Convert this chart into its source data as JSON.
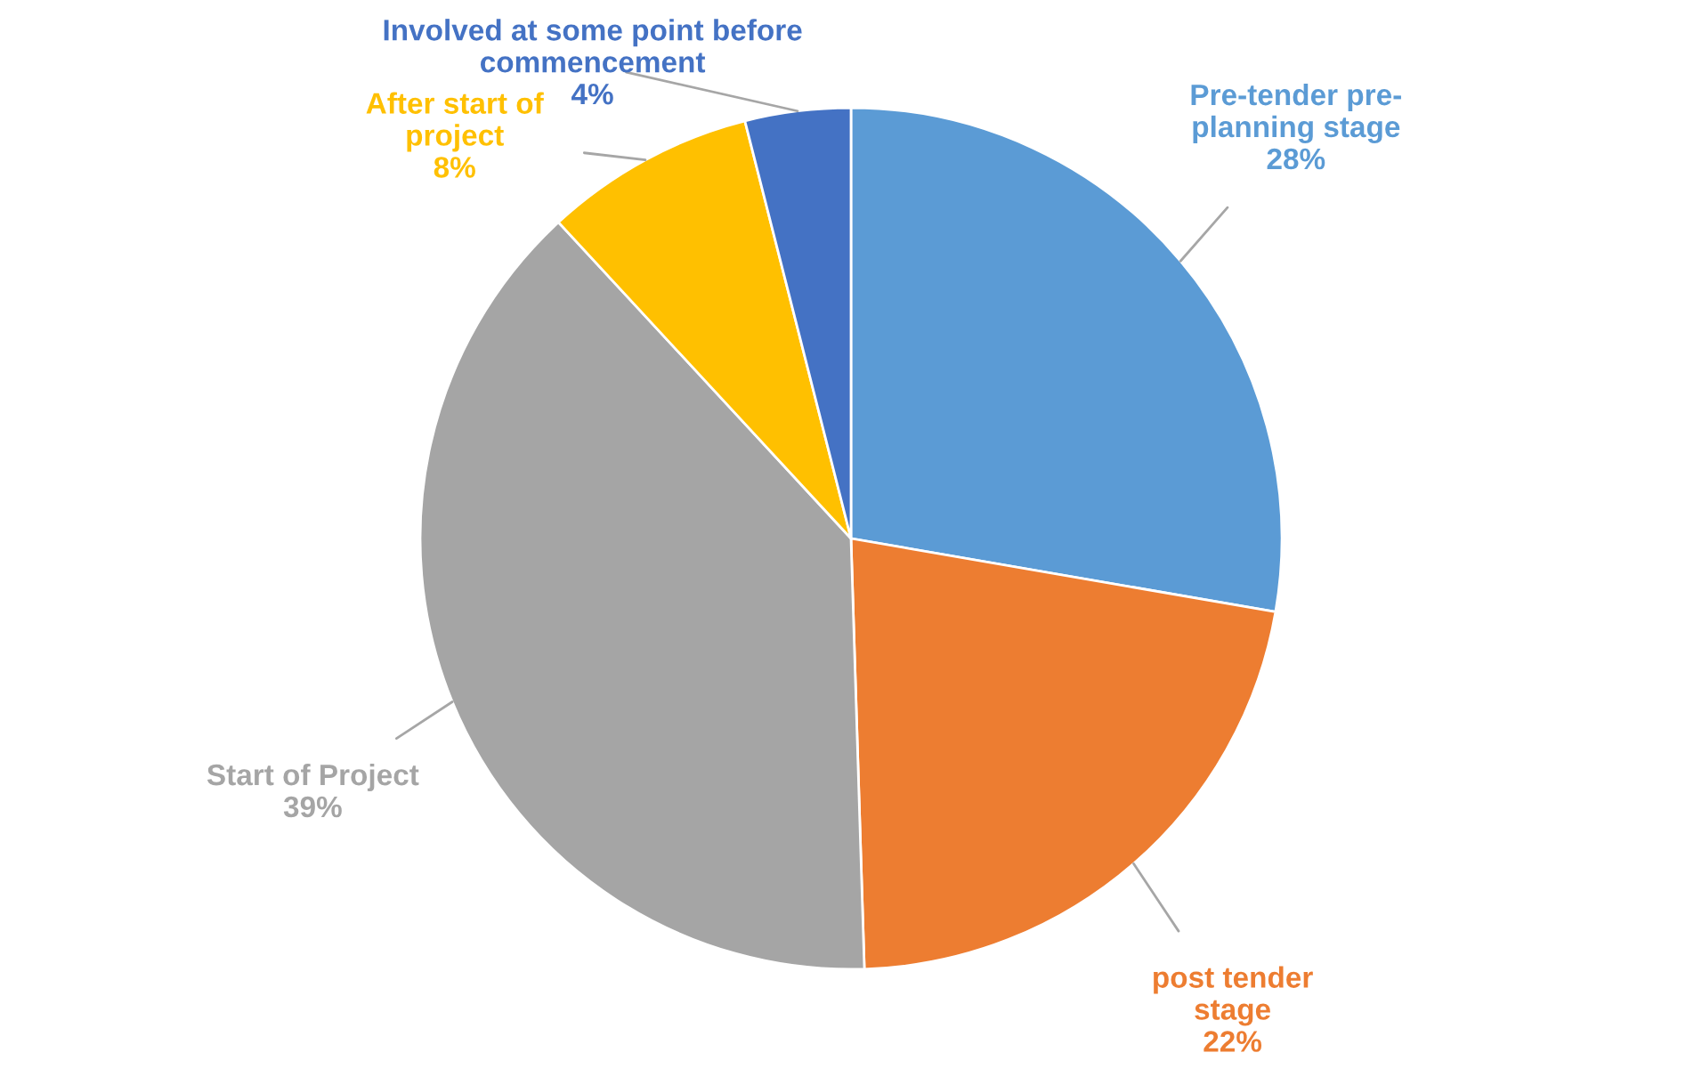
{
  "chart_data": {
    "type": "pie",
    "categories": [
      "Pre-tender pre-\nplanning stage",
      "post tender\nstage",
      "Start of Project",
      "After start of\nproject",
      "Involved at some point before\ncommencement"
    ],
    "values": [
      28,
      22,
      39,
      8,
      4
    ],
    "colors": [
      "#5b9bd5",
      "#ed7d31",
      "#a5a5a5",
      "#ffc000",
      "#4472c4"
    ],
    "value_labels": [
      "28%",
      "22%",
      "39%",
      "8%",
      "4%"
    ]
  }
}
